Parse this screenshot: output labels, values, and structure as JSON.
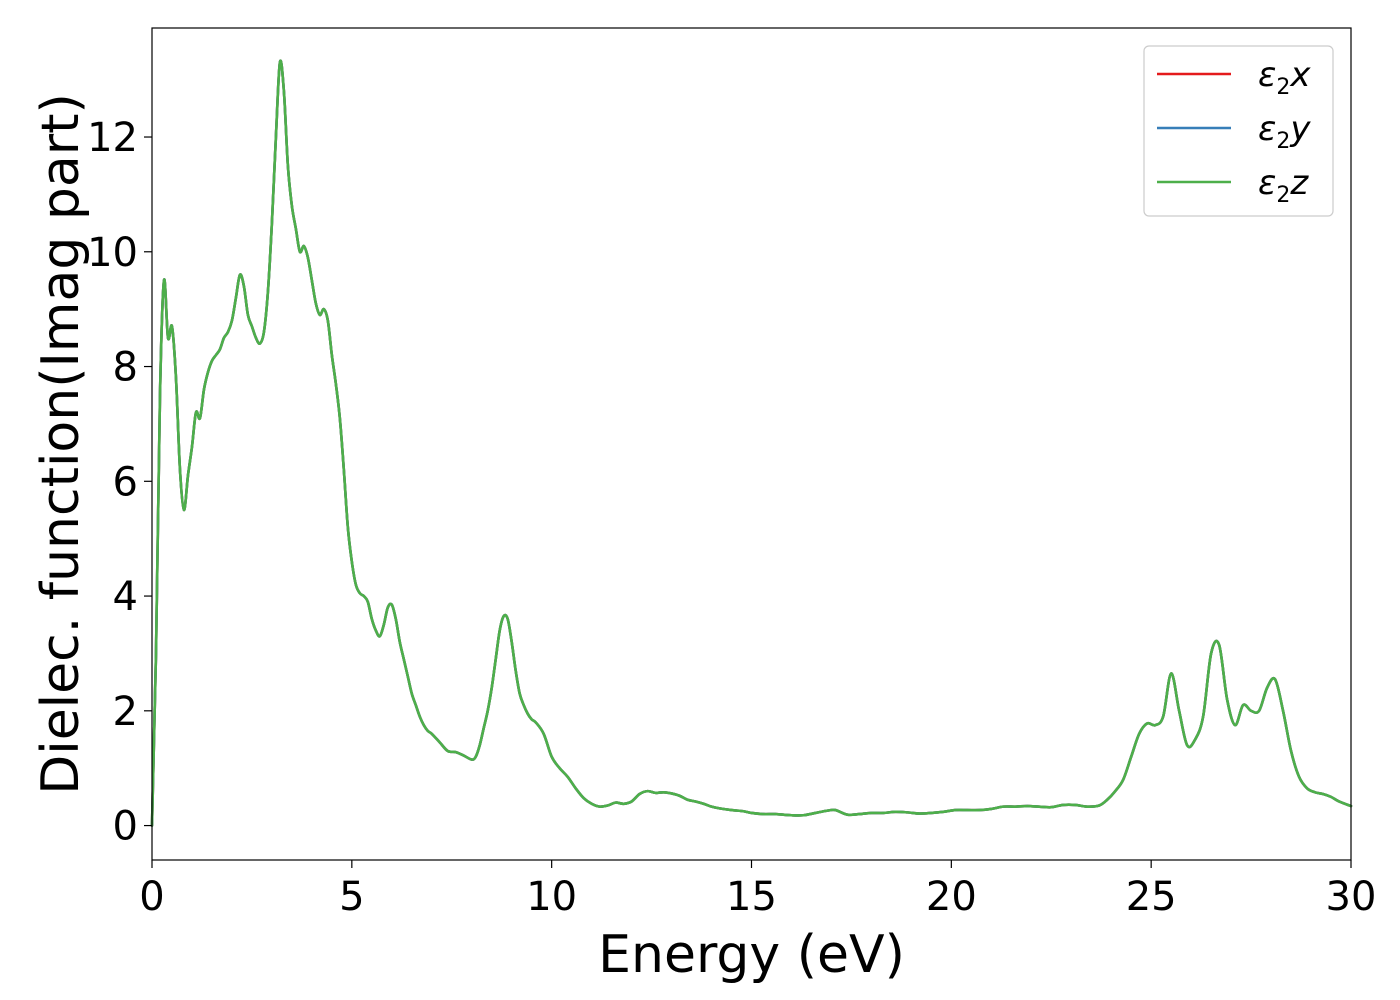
{
  "chart_data": {
    "type": "line",
    "xlabel": "Energy (eV)",
    "ylabel": "Dielec. function(Imag part)",
    "xlim": [
      0,
      30
    ],
    "ylim": [
      -0.6,
      13.9
    ],
    "xticks": [
      0,
      5,
      10,
      15,
      20,
      25,
      30
    ],
    "xtick_labels": [
      "0",
      "5",
      "10",
      "15",
      "20",
      "25",
      "30"
    ],
    "yticks": [
      0,
      2,
      4,
      6,
      8,
      10,
      12
    ],
    "ytick_labels": [
      "0",
      "2",
      "4",
      "6",
      "8",
      "10",
      "12"
    ],
    "grid": false,
    "legend_position": "top-right",
    "x": [
      0,
      0.1,
      0.2,
      0.3,
      0.4,
      0.5,
      0.6,
      0.7,
      0.8,
      0.9,
      1.0,
      1.1,
      1.2,
      1.3,
      1.4,
      1.5,
      1.6,
      1.7,
      1.8,
      1.9,
      2.0,
      2.1,
      2.2,
      2.3,
      2.4,
      2.5,
      2.6,
      2.7,
      2.8,
      2.9,
      3.0,
      3.1,
      3.2,
      3.3,
      3.4,
      3.5,
      3.6,
      3.7,
      3.8,
      3.9,
      4.0,
      4.1,
      4.2,
      4.3,
      4.4,
      4.5,
      4.6,
      4.7,
      4.8,
      4.9,
      5.0,
      5.1,
      5.2,
      5.3,
      5.4,
      5.5,
      5.6,
      5.7,
      5.8,
      5.9,
      6.0,
      6.1,
      6.2,
      6.3,
      6.4,
      6.5,
      6.6,
      6.7,
      6.8,
      6.9,
      7.0,
      7.2,
      7.4,
      7.6,
      7.8,
      8.0,
      8.1,
      8.2,
      8.3,
      8.4,
      8.5,
      8.6,
      8.7,
      8.8,
      8.9,
      9.0,
      9.1,
      9.2,
      9.3,
      9.4,
      9.5,
      9.6,
      9.8,
      10.0,
      10.2,
      10.4,
      10.6,
      10.8,
      11.0,
      11.2,
      11.4,
      11.6,
      11.8,
      12.0,
      12.2,
      12.4,
      12.6,
      12.8,
      13.0,
      13.2,
      13.4,
      13.6,
      13.8,
      14.0,
      14.2,
      14.5,
      14.8,
      15.0,
      15.3,
      15.6,
      16.0,
      16.3,
      16.6,
      16.9,
      17.1,
      17.4,
      17.7,
      18.0,
      18.3,
      18.6,
      18.9,
      19.2,
      19.5,
      19.8,
      20.1,
      20.4,
      20.7,
      21.0,
      21.3,
      21.6,
      21.9,
      22.2,
      22.5,
      22.8,
      23.1,
      23.4,
      23.7,
      23.9,
      24.1,
      24.3,
      24.5,
      24.7,
      24.9,
      25.1,
      25.3,
      25.5,
      25.7,
      25.9,
      26.1,
      26.3,
      26.5,
      26.7,
      26.9,
      27.1,
      27.3,
      27.5,
      27.7,
      27.9,
      28.1,
      28.3,
      28.5,
      28.7,
      28.9,
      29.1,
      29.3,
      29.5,
      29.7,
      30.0
    ],
    "series": [
      {
        "name": "ε2x",
        "color": "#e41a1c",
        "values": [
          0.0,
          3.0,
          7.5,
          9.5,
          8.5,
          8.7,
          7.8,
          6.2,
          5.5,
          6.1,
          6.6,
          7.2,
          7.1,
          7.6,
          7.9,
          8.1,
          8.2,
          8.3,
          8.5,
          8.6,
          8.8,
          9.2,
          9.6,
          9.4,
          8.9,
          8.7,
          8.5,
          8.4,
          8.6,
          9.3,
          10.5,
          12.0,
          13.3,
          12.8,
          11.5,
          10.8,
          10.4,
          10.0,
          10.1,
          9.9,
          9.5,
          9.1,
          8.9,
          9.0,
          8.8,
          8.2,
          7.7,
          7.1,
          6.2,
          5.2,
          4.6,
          4.2,
          4.05,
          4.0,
          3.9,
          3.6,
          3.4,
          3.3,
          3.5,
          3.8,
          3.85,
          3.6,
          3.2,
          2.9,
          2.6,
          2.3,
          2.1,
          1.9,
          1.75,
          1.65,
          1.6,
          1.45,
          1.3,
          1.28,
          1.22,
          1.15,
          1.2,
          1.4,
          1.7,
          2.0,
          2.4,
          2.9,
          3.4,
          3.65,
          3.6,
          3.2,
          2.7,
          2.3,
          2.1,
          1.95,
          1.85,
          1.8,
          1.6,
          1.2,
          1.0,
          0.85,
          0.65,
          0.48,
          0.38,
          0.33,
          0.35,
          0.4,
          0.38,
          0.42,
          0.55,
          0.6,
          0.57,
          0.58,
          0.56,
          0.52,
          0.45,
          0.42,
          0.38,
          0.33,
          0.3,
          0.27,
          0.25,
          0.22,
          0.2,
          0.2,
          0.18,
          0.18,
          0.22,
          0.26,
          0.27,
          0.19,
          0.2,
          0.22,
          0.22,
          0.24,
          0.23,
          0.21,
          0.22,
          0.24,
          0.27,
          0.27,
          0.27,
          0.29,
          0.33,
          0.33,
          0.34,
          0.33,
          0.32,
          0.36,
          0.36,
          0.33,
          0.35,
          0.45,
          0.6,
          0.8,
          1.2,
          1.6,
          1.78,
          1.75,
          1.9,
          2.65,
          2.0,
          1.4,
          1.5,
          1.9,
          3.0,
          3.15,
          2.2,
          1.75,
          2.1,
          2.0,
          2.0,
          2.4,
          2.55,
          2.0,
          1.3,
          0.85,
          0.65,
          0.58,
          0.55,
          0.5,
          0.42,
          0.34
        ]
      },
      {
        "name": "ε2y",
        "color": "#377eb8",
        "values": [
          0.0,
          3.0,
          7.5,
          9.5,
          8.5,
          8.7,
          7.8,
          6.2,
          5.5,
          6.1,
          6.6,
          7.2,
          7.1,
          7.6,
          7.9,
          8.1,
          8.2,
          8.3,
          8.5,
          8.6,
          8.8,
          9.2,
          9.6,
          9.4,
          8.9,
          8.7,
          8.5,
          8.4,
          8.6,
          9.3,
          10.5,
          12.0,
          13.3,
          12.8,
          11.5,
          10.8,
          10.4,
          10.0,
          10.1,
          9.9,
          9.5,
          9.1,
          8.9,
          9.0,
          8.8,
          8.2,
          7.7,
          7.1,
          6.2,
          5.2,
          4.6,
          4.2,
          4.05,
          4.0,
          3.9,
          3.6,
          3.4,
          3.3,
          3.5,
          3.8,
          3.85,
          3.6,
          3.2,
          2.9,
          2.6,
          2.3,
          2.1,
          1.9,
          1.75,
          1.65,
          1.6,
          1.45,
          1.3,
          1.28,
          1.22,
          1.15,
          1.2,
          1.4,
          1.7,
          2.0,
          2.4,
          2.9,
          3.4,
          3.65,
          3.6,
          3.2,
          2.7,
          2.3,
          2.1,
          1.95,
          1.85,
          1.8,
          1.6,
          1.2,
          1.0,
          0.85,
          0.65,
          0.48,
          0.38,
          0.33,
          0.35,
          0.4,
          0.38,
          0.42,
          0.55,
          0.6,
          0.57,
          0.58,
          0.56,
          0.52,
          0.45,
          0.42,
          0.38,
          0.33,
          0.3,
          0.27,
          0.25,
          0.22,
          0.2,
          0.2,
          0.18,
          0.18,
          0.22,
          0.26,
          0.27,
          0.19,
          0.2,
          0.22,
          0.22,
          0.24,
          0.23,
          0.21,
          0.22,
          0.24,
          0.27,
          0.27,
          0.27,
          0.29,
          0.33,
          0.33,
          0.34,
          0.33,
          0.32,
          0.36,
          0.36,
          0.33,
          0.35,
          0.45,
          0.6,
          0.8,
          1.2,
          1.6,
          1.78,
          1.75,
          1.9,
          2.65,
          2.0,
          1.4,
          1.5,
          1.9,
          3.0,
          3.15,
          2.2,
          1.75,
          2.1,
          2.0,
          2.0,
          2.4,
          2.55,
          2.0,
          1.3,
          0.85,
          0.65,
          0.58,
          0.55,
          0.5,
          0.42,
          0.34
        ]
      },
      {
        "name": "ε2z",
        "color": "#4daf4a",
        "values": [
          0.0,
          3.0,
          7.5,
          9.5,
          8.5,
          8.7,
          7.8,
          6.2,
          5.5,
          6.1,
          6.6,
          7.2,
          7.1,
          7.6,
          7.9,
          8.1,
          8.2,
          8.3,
          8.5,
          8.6,
          8.8,
          9.2,
          9.6,
          9.4,
          8.9,
          8.7,
          8.5,
          8.4,
          8.6,
          9.3,
          10.5,
          12.0,
          13.3,
          12.8,
          11.5,
          10.8,
          10.4,
          10.0,
          10.1,
          9.9,
          9.5,
          9.1,
          8.9,
          9.0,
          8.8,
          8.2,
          7.7,
          7.1,
          6.2,
          5.2,
          4.6,
          4.2,
          4.05,
          4.0,
          3.9,
          3.6,
          3.4,
          3.3,
          3.5,
          3.8,
          3.85,
          3.6,
          3.2,
          2.9,
          2.6,
          2.3,
          2.1,
          1.9,
          1.75,
          1.65,
          1.6,
          1.45,
          1.3,
          1.28,
          1.22,
          1.15,
          1.2,
          1.4,
          1.7,
          2.0,
          2.4,
          2.9,
          3.4,
          3.65,
          3.6,
          3.2,
          2.7,
          2.3,
          2.1,
          1.95,
          1.85,
          1.8,
          1.6,
          1.2,
          1.0,
          0.85,
          0.65,
          0.48,
          0.38,
          0.33,
          0.35,
          0.4,
          0.38,
          0.42,
          0.55,
          0.6,
          0.57,
          0.58,
          0.56,
          0.52,
          0.45,
          0.42,
          0.38,
          0.33,
          0.3,
          0.27,
          0.25,
          0.22,
          0.2,
          0.2,
          0.18,
          0.18,
          0.22,
          0.26,
          0.27,
          0.19,
          0.2,
          0.22,
          0.22,
          0.24,
          0.23,
          0.21,
          0.22,
          0.24,
          0.27,
          0.27,
          0.27,
          0.29,
          0.33,
          0.33,
          0.34,
          0.33,
          0.32,
          0.36,
          0.36,
          0.33,
          0.35,
          0.45,
          0.6,
          0.8,
          1.2,
          1.6,
          1.78,
          1.75,
          1.9,
          2.65,
          2.0,
          1.4,
          1.5,
          1.9,
          3.0,
          3.15,
          2.2,
          1.75,
          2.1,
          2.0,
          2.0,
          2.4,
          2.55,
          2.0,
          1.3,
          0.85,
          0.65,
          0.58,
          0.55,
          0.5,
          0.42,
          0.34
        ]
      }
    ],
    "legend": [
      {
        "base": "ε",
        "sub": "2",
        "axis": "x",
        "color": "#e41a1c"
      },
      {
        "base": "ε",
        "sub": "2",
        "axis": "y",
        "color": "#377eb8"
      },
      {
        "base": "ε",
        "sub": "2",
        "axis": "z",
        "color": "#4daf4a"
      }
    ]
  }
}
